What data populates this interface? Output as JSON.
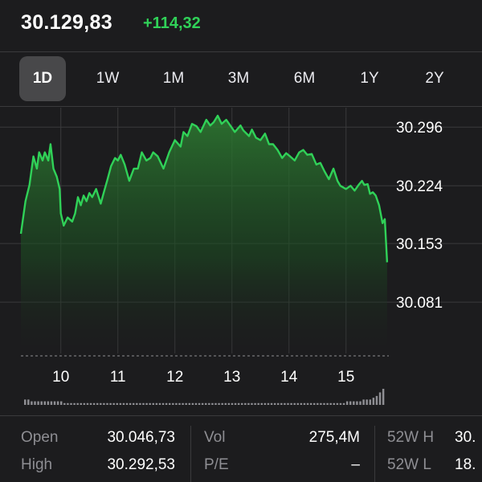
{
  "header": {
    "price": "30.129,83",
    "change": "+114,32",
    "change_color": "#30d158"
  },
  "tabs": [
    {
      "label": "1D",
      "active": true
    },
    {
      "label": "1W",
      "active": false
    },
    {
      "label": "1M",
      "active": false
    },
    {
      "label": "3M",
      "active": false
    },
    {
      "label": "6M",
      "active": false
    },
    {
      "label": "1Y",
      "active": false
    },
    {
      "label": "2Y",
      "active": false
    }
  ],
  "chart_data": {
    "type": "area",
    "y_tick_labels": [
      "30.296",
      "30.224",
      "30.153",
      "30.081"
    ],
    "y_ticks": [
      30.296,
      30.224,
      30.153,
      30.081
    ],
    "ylim": [
      30.018,
      30.312
    ],
    "x_tick_labels": [
      "10",
      "11",
      "12",
      "13",
      "14",
      "15"
    ],
    "x_ticks": [
      10,
      11,
      12,
      13,
      14,
      15
    ],
    "xlim": [
      9.3,
      15.75
    ],
    "grid": true,
    "line_color": "#30d158",
    "previous_close": 30.015,
    "series": [
      {
        "x": [
          9.3,
          9.38,
          9.45,
          9.52,
          9.58,
          9.62,
          9.68,
          9.72,
          9.78,
          9.82,
          9.87,
          9.93,
          9.98,
          10.0,
          10.05,
          10.12,
          10.2,
          10.25,
          10.3,
          10.35,
          10.4,
          10.45,
          10.5,
          10.55,
          10.62,
          10.7,
          10.75,
          10.82,
          10.88,
          10.95,
          11.0,
          11.05,
          11.12,
          11.2,
          11.28,
          11.35,
          11.42,
          11.5,
          11.57,
          11.62,
          11.7,
          11.8,
          11.9,
          12.0,
          12.1,
          12.15,
          12.22,
          12.3,
          12.38,
          12.45,
          12.55,
          12.62,
          12.68,
          12.75,
          12.82,
          12.9,
          12.95,
          13.05,
          13.15,
          13.2,
          13.3,
          13.35,
          13.42,
          13.5,
          13.58,
          13.65,
          13.72,
          13.8,
          13.88,
          13.95,
          14.02,
          14.1,
          14.18,
          14.25,
          14.32,
          14.4,
          14.48,
          14.55,
          14.62,
          14.7,
          14.78,
          14.85,
          14.9,
          15.0,
          15.08,
          15.15,
          15.22,
          15.28,
          15.32,
          15.38,
          15.42,
          15.47,
          15.52,
          15.58,
          15.64,
          15.68,
          15.72
        ],
        "y": [
          30.165,
          30.205,
          30.225,
          30.26,
          30.245,
          30.265,
          30.255,
          30.265,
          30.255,
          30.275,
          30.245,
          30.235,
          30.22,
          30.19,
          30.175,
          30.185,
          30.18,
          30.19,
          30.21,
          30.2,
          30.212,
          30.205,
          30.215,
          30.21,
          30.22,
          30.202,
          30.215,
          30.232,
          30.248,
          30.258,
          30.255,
          30.262,
          30.25,
          30.23,
          30.245,
          30.245,
          30.265,
          30.255,
          30.258,
          30.265,
          30.26,
          30.245,
          30.265,
          30.28,
          30.272,
          30.29,
          30.285,
          30.3,
          30.297,
          30.29,
          30.305,
          30.298,
          30.302,
          30.31,
          30.3,
          30.305,
          30.3,
          30.29,
          30.298,
          30.292,
          30.285,
          30.293,
          30.283,
          30.28,
          30.288,
          30.275,
          30.275,
          30.268,
          30.258,
          30.264,
          30.26,
          30.255,
          30.265,
          30.268,
          30.262,
          30.263,
          30.25,
          30.252,
          30.242,
          30.232,
          30.245,
          30.23,
          30.224,
          30.22,
          30.224,
          30.218,
          30.225,
          30.23,
          30.225,
          30.226,
          30.214,
          30.216,
          30.212,
          30.2,
          30.178,
          30.183,
          30.13
        ]
      }
    ]
  },
  "volume": {
    "bar_color": "#8e8e93",
    "values": [
      3,
      3,
      2,
      2,
      2,
      2,
      2,
      2,
      2,
      2,
      2,
      2,
      1,
      1,
      1,
      1,
      1,
      1,
      1,
      1,
      1,
      1,
      1,
      1,
      1,
      1,
      1,
      1,
      1,
      1,
      1,
      1,
      1,
      1,
      1,
      1,
      1,
      1,
      1,
      1,
      1,
      1,
      1,
      1,
      1,
      1,
      1,
      1,
      1,
      1,
      1,
      1,
      1,
      1,
      1,
      1,
      1,
      1,
      1,
      1,
      1,
      1,
      1,
      1,
      1,
      1,
      1,
      1,
      1,
      1,
      1,
      1,
      1,
      1,
      1,
      1,
      1,
      1,
      1,
      1,
      1,
      1,
      1,
      1,
      1,
      1,
      1,
      1,
      1,
      1,
      1,
      1,
      1,
      1,
      1,
      1,
      1,
      1,
      2,
      2,
      2,
      2,
      2,
      3,
      3,
      3,
      4,
      5,
      7,
      9
    ]
  },
  "stats": {
    "open_label": "Open",
    "open_value": "30.046,73",
    "high_label": "High",
    "high_value": "30.292,53",
    "vol_label": "Vol",
    "vol_value": "275,4M",
    "pe_label": "P/E",
    "pe_value": "–",
    "w52h_label": "52W H",
    "w52h_value": "30.",
    "w52l_label": "52W L",
    "w52l_value": "18."
  }
}
